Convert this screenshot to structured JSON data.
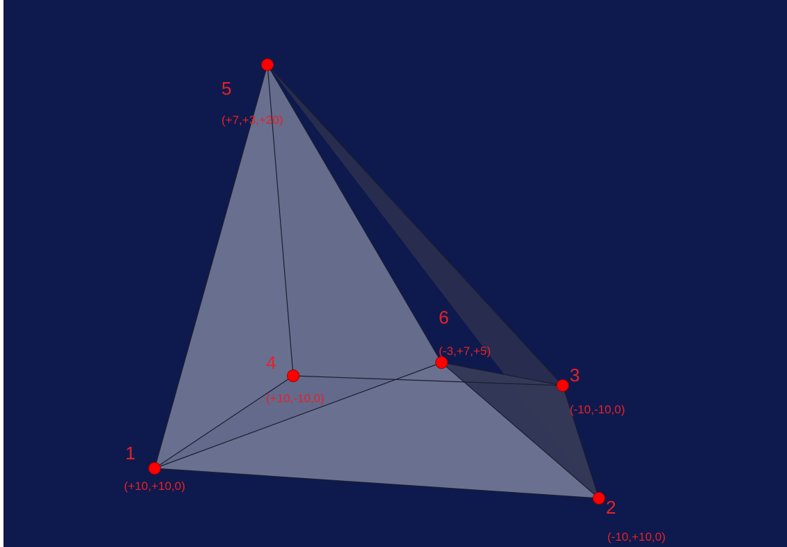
{
  "colors": {
    "background": "#0e1a4d",
    "face_light": "#6a7190",
    "face_mid": "#5a617f",
    "face_dark": "#353a58",
    "face_darker": "#2a2f4f",
    "edge": "#1a1d30",
    "vertex": "#ff0000",
    "label": "#e8202a"
  },
  "vertices": [
    {
      "id": "1",
      "number": "1",
      "coordinates": "(+10,+10,0)"
    },
    {
      "id": "2",
      "number": "2",
      "coordinates": "(-10,+10,0)"
    },
    {
      "id": "3",
      "number": "3",
      "coordinates": "(-10,-10,0)"
    },
    {
      "id": "4",
      "number": "4",
      "coordinates": "(+10,-10,0)"
    },
    {
      "id": "5",
      "number": "5",
      "coordinates": "(+7,+3,+20)"
    },
    {
      "id": "6",
      "number": "6",
      "coordinates": "(-3,+7,+5)"
    }
  ],
  "faces": [
    {
      "vertices": [
        "1",
        "4",
        "5"
      ],
      "shade": "face_mid"
    },
    {
      "vertices": [
        "5",
        "3",
        "2"
      ],
      "shade": "face_darker"
    },
    {
      "vertices": [
        "4",
        "5",
        "6",
        "3"
      ],
      "shade": "face_dark"
    },
    {
      "vertices": [
        "1",
        "5",
        "6",
        "2"
      ],
      "shade": "face_light"
    },
    {
      "vertices": [
        "1",
        "6",
        "2"
      ],
      "shade": "face_light"
    },
    {
      "vertices": [
        "6",
        "3",
        "2"
      ],
      "shade": "face_dark"
    }
  ],
  "edges": [
    [
      "1",
      "5"
    ],
    [
      "1",
      "4"
    ],
    [
      "1",
      "6"
    ],
    [
      "1",
      "2"
    ],
    [
      "4",
      "5"
    ],
    [
      "4",
      "3"
    ],
    [
      "5",
      "3"
    ],
    [
      "5",
      "6"
    ],
    [
      "6",
      "3"
    ],
    [
      "6",
      "2"
    ],
    [
      "3",
      "2"
    ]
  ]
}
